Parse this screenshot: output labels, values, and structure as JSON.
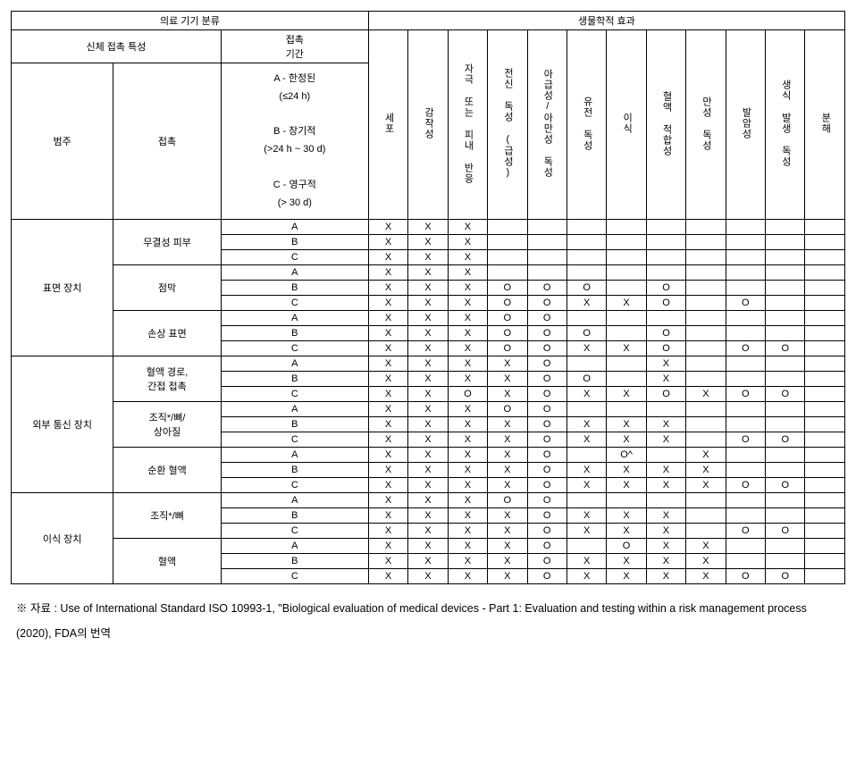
{
  "headers": {
    "device_class": "의료 기기 분류",
    "bio_effect": "생물학적 효과",
    "body_contact": "신체 접촉 특성",
    "duration": "접촉\n기간",
    "category": "범주",
    "contact": "접촉",
    "duration_detail": "A - 한정된\n(≤24 h)\n\nB - 장기적\n(>24 h ~ 30 d)\n\nC - 영구적\n(> 30 d)"
  },
  "effect_cols": [
    "세포",
    "감작성",
    "자극 또는 피내 반응",
    "전신 독성 (급성)",
    "아급성/아만성 독성",
    "유전 독성",
    "이식",
    "혈액 적합성",
    "만성 독성",
    "발암성",
    "생식 발생 독성",
    "분해"
  ],
  "categories": [
    {
      "name": "표면 장치",
      "contacts": [
        {
          "name": "무결성 피부",
          "rows": [
            {
              "d": "A",
              "v": [
                "X",
                "X",
                "X",
                "",
                "",
                "",
                "",
                "",
                "",
                "",
                "",
                ""
              ]
            },
            {
              "d": "B",
              "v": [
                "X",
                "X",
                "X",
                "",
                "",
                "",
                "",
                "",
                "",
                "",
                "",
                ""
              ]
            },
            {
              "d": "C",
              "v": [
                "X",
                "X",
                "X",
                "",
                "",
                "",
                "",
                "",
                "",
                "",
                "",
                ""
              ]
            }
          ]
        },
        {
          "name": "점막",
          "rows": [
            {
              "d": "A",
              "v": [
                "X",
                "X",
                "X",
                "",
                "",
                "",
                "",
                "",
                "",
                "",
                "",
                ""
              ]
            },
            {
              "d": "B",
              "v": [
                "X",
                "X",
                "X",
                "O",
                "O",
                "O",
                "",
                "O",
                "",
                "",
                "",
                ""
              ]
            },
            {
              "d": "C",
              "v": [
                "X",
                "X",
                "X",
                "O",
                "O",
                "X",
                "X",
                "O",
                "",
                "O",
                "",
                ""
              ]
            }
          ]
        },
        {
          "name": "손상 표면",
          "rows": [
            {
              "d": "A",
              "v": [
                "X",
                "X",
                "X",
                "O",
                "O",
                "",
                "",
                "",
                "",
                "",
                "",
                ""
              ]
            },
            {
              "d": "B",
              "v": [
                "X",
                "X",
                "X",
                "O",
                "O",
                "O",
                "",
                "O",
                "",
                "",
                "",
                ""
              ]
            },
            {
              "d": "C",
              "v": [
                "X",
                "X",
                "X",
                "O",
                "O",
                "X",
                "X",
                "O",
                "",
                "O",
                "O",
                ""
              ]
            }
          ]
        }
      ]
    },
    {
      "name": "외부 통신 장치",
      "contacts": [
        {
          "name": "혈액 경로,\n간접 접촉",
          "rows": [
            {
              "d": "A",
              "v": [
                "X",
                "X",
                "X",
                "X",
                "O",
                "",
                "",
                "X",
                "",
                "",
                "",
                ""
              ]
            },
            {
              "d": "B",
              "v": [
                "X",
                "X",
                "X",
                "X",
                "O",
                "O",
                "",
                "X",
                "",
                "",
                "",
                ""
              ]
            },
            {
              "d": "C",
              "v": [
                "X",
                "X",
                "O",
                "X",
                "O",
                "X",
                "X",
                "O",
                "X",
                "O",
                "O",
                ""
              ]
            }
          ]
        },
        {
          "name": "조직*/뼈/\n상아질",
          "rows": [
            {
              "d": "A",
              "v": [
                "X",
                "X",
                "X",
                "O",
                "O",
                "",
                "",
                "",
                "",
                "",
                "",
                ""
              ]
            },
            {
              "d": "B",
              "v": [
                "X",
                "X",
                "X",
                "X",
                "O",
                "X",
                "X",
                "X",
                "",
                "",
                "",
                ""
              ]
            },
            {
              "d": "C",
              "v": [
                "X",
                "X",
                "X",
                "X",
                "O",
                "X",
                "X",
                "X",
                "",
                "O",
                "O",
                ""
              ]
            }
          ]
        },
        {
          "name": "순환 혈액",
          "rows": [
            {
              "d": "A",
              "v": [
                "X",
                "X",
                "X",
                "X",
                "O",
                "",
                "O^",
                "",
                "X",
                "",
                "",
                ""
              ]
            },
            {
              "d": "B",
              "v": [
                "X",
                "X",
                "X",
                "X",
                "O",
                "X",
                "X",
                "X",
                "X",
                "",
                "",
                ""
              ]
            },
            {
              "d": "C",
              "v": [
                "X",
                "X",
                "X",
                "X",
                "O",
                "X",
                "X",
                "X",
                "X",
                "O",
                "O",
                ""
              ]
            }
          ]
        }
      ]
    },
    {
      "name": "이식 장치",
      "contacts": [
        {
          "name": "조직*/뼈",
          "rows": [
            {
              "d": "A",
              "v": [
                "X",
                "X",
                "X",
                "O",
                "O",
                "",
                "",
                "",
                "",
                "",
                "",
                ""
              ]
            },
            {
              "d": "B",
              "v": [
                "X",
                "X",
                "X",
                "X",
                "O",
                "X",
                "X",
                "X",
                "",
                "",
                "",
                ""
              ]
            },
            {
              "d": "C",
              "v": [
                "X",
                "X",
                "X",
                "X",
                "O",
                "X",
                "X",
                "X",
                "",
                "O",
                "O",
                ""
              ]
            }
          ]
        },
        {
          "name": "혈액",
          "rows": [
            {
              "d": "A",
              "v": [
                "X",
                "X",
                "X",
                "X",
                "O",
                "",
                "O",
                "X",
                "X",
                "",
                "",
                ""
              ]
            },
            {
              "d": "B",
              "v": [
                "X",
                "X",
                "X",
                "X",
                "O",
                "X",
                "X",
                "X",
                "X",
                "",
                "",
                ""
              ]
            },
            {
              "d": "C",
              "v": [
                "X",
                "X",
                "X",
                "X",
                "O",
                "X",
                "X",
                "X",
                "X",
                "O",
                "O",
                ""
              ]
            }
          ]
        }
      ]
    }
  ],
  "footnote": "※ 자료 : Use of International Standard ISO 10993-1, \"Biological evaluation of medical devices - Part 1: Evaluation and testing within a risk management process (2020), FDA의 번역"
}
